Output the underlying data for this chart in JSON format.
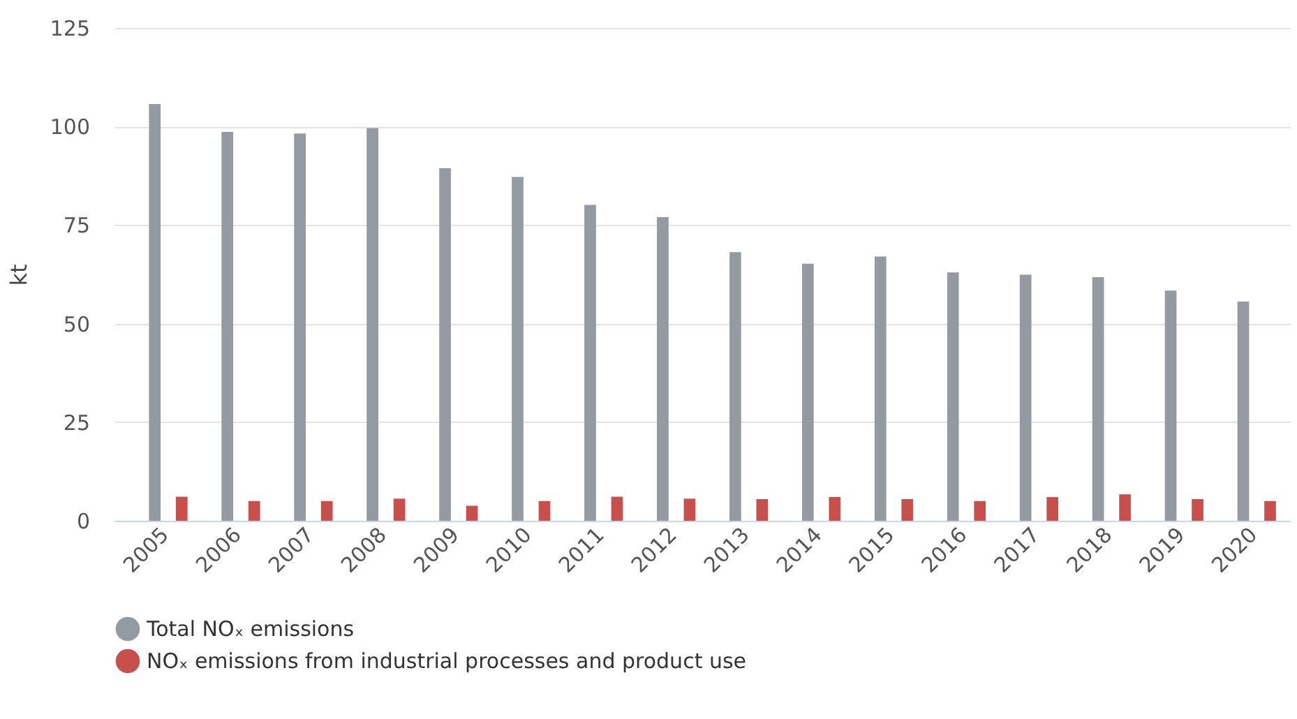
{
  "chart_data": {
    "type": "bar",
    "ylabel": "kt",
    "categories": [
      "2005",
      "2006",
      "2007",
      "2008",
      "2009",
      "2010",
      "2011",
      "2012",
      "2013",
      "2014",
      "2015",
      "2016",
      "2017",
      "2018",
      "2019",
      "2020"
    ],
    "series": [
      {
        "name": "Total NOₓ emissions",
        "color": "#939aa1",
        "values": [
          105.7,
          98.6,
          98.2,
          99.6,
          89.4,
          87.2,
          80.1,
          77.0,
          68.1,
          65.2,
          67.0,
          63.0,
          62.4,
          61.8,
          58.4,
          55.6
        ]
      },
      {
        "name": "NOₓ emissions from industrial processes and product use",
        "color": "#c8504c",
        "values": [
          6.1,
          5.0,
          5.0,
          5.6,
          3.8,
          5.0,
          6.1,
          5.6,
          5.5,
          6.0,
          5.5,
          5.0,
          6.0,
          6.7,
          5.5,
          5.0
        ]
      }
    ],
    "ylim": [
      0,
      125
    ],
    "yticks": [
      0,
      25,
      50,
      75,
      100,
      125
    ],
    "grid": "y",
    "legend": "bottom"
  }
}
